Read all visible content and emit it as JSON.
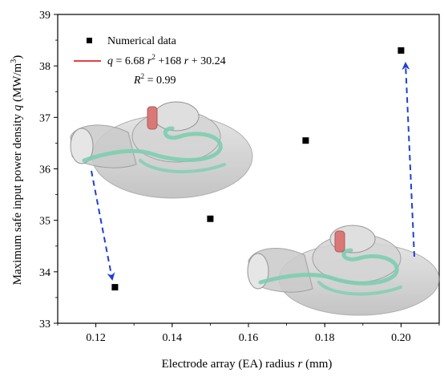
{
  "chart_data": {
    "type": "scatter",
    "xlabel_main": "Electrode array (EA) radius ",
    "xlabel_var": "r",
    "xlabel_unit": " (mm)",
    "ylabel_main": "Maximum safe input power density ",
    "ylabel_var": "q",
    "ylabel_unit": " (MW/m",
    "ylabel_unit_sup": "3",
    "ylabel_unit_close": ")",
    "xlim": [
      0.11,
      0.21
    ],
    "ylim": [
      33,
      39
    ],
    "xticks": [
      0.12,
      0.14,
      0.16,
      0.18,
      0.2
    ],
    "xtick_labels": [
      "0.12",
      "0.14",
      "0.16",
      "0.18",
      "0.20"
    ],
    "yticks": [
      33,
      34,
      35,
      36,
      37,
      38,
      39
    ],
    "ytick_labels": [
      "33",
      "34",
      "35",
      "36",
      "37",
      "38",
      "39"
    ],
    "series": [
      {
        "name": "Numerical data",
        "marker": "square",
        "color": "#000000",
        "x": [
          0.125,
          0.15,
          0.175,
          0.2
        ],
        "y": [
          33.7,
          35.03,
          36.55,
          38.3
        ]
      }
    ],
    "fit": {
      "color": "#e00000",
      "coefficients": [
        6.68,
        168,
        30.24
      ],
      "equation_lhs": "q",
      "equation_eq": " = 6.68 ",
      "equation_r1": "r",
      "equation_sup": "2",
      "equation_mid": " +168 ",
      "equation_r2": "r",
      "equation_tail": " + 30.24",
      "r2_label": "R",
      "r2_sup": "2",
      "r2_value": " = 0.99"
    },
    "annotations": {
      "arrow_color": "#1f3fd8"
    },
    "legend_position": "top-left",
    "grid": false
  }
}
